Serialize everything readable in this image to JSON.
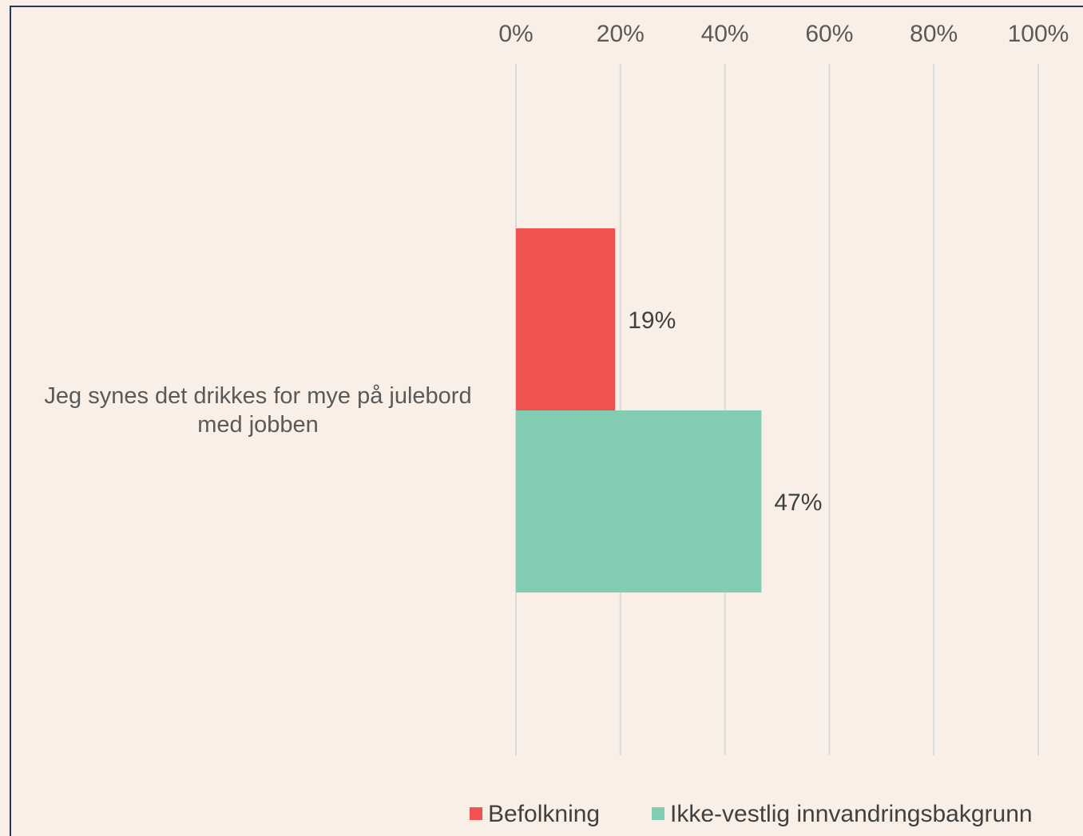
{
  "chart_data": {
    "type": "bar",
    "orientation": "horizontal",
    "categories": [
      "Jeg synes det drikkes for mye på julebord med jobben"
    ],
    "category_lines": [
      [
        "Jeg synes det drikkes for mye på julebord",
        "med jobben"
      ]
    ],
    "series": [
      {
        "name": "Befolkning",
        "values": [
          19
        ],
        "labels": [
          "19%"
        ],
        "color": "#ef5350"
      },
      {
        "name": "Ikke-vestlig innvandringsbakgrunn",
        "values": [
          47
        ],
        "labels": [
          "47%"
        ],
        "color": "#82ccb4"
      }
    ],
    "xlim": [
      0,
      100
    ],
    "xticks": [
      0,
      20,
      40,
      60,
      80,
      100
    ],
    "xtick_labels": [
      "0%",
      "20%",
      "40%",
      "60%",
      "80%",
      "100%"
    ],
    "x_axis_position": "top",
    "grid": true,
    "legend": "bottom"
  },
  "colors": {
    "background": "#f9efe6",
    "frame": "#1f3a5a",
    "gridline": "#d9d9d9"
  }
}
